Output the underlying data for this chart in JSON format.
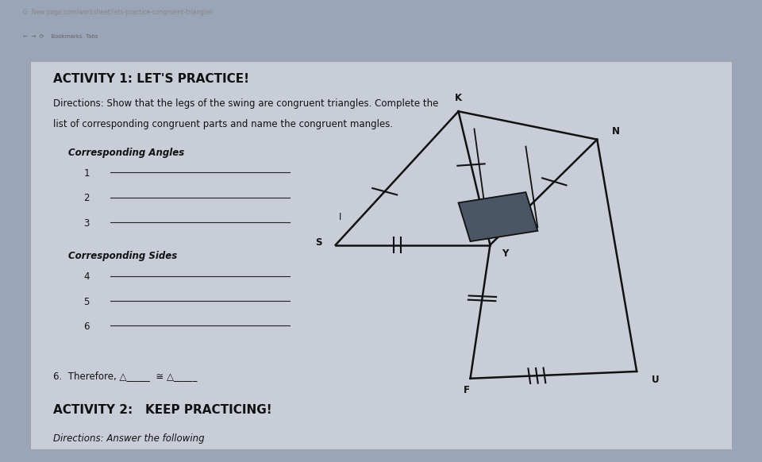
{
  "bg_browser": "#2a2a35",
  "bg_tab": "#3a3a4a",
  "bg_main": "#9aa5b8",
  "bg_content": "#b8bfcc",
  "title": "ACTIVITY 1: LET'S PRACTICE!",
  "directions_line1": "Directions: Show that the legs of the swing are congruent triangles. Complete the",
  "directions_line2": "list of corresponding congruent parts and name the congruent mangles.",
  "section1": "Corresponding Angles",
  "items1": [
    "1",
    "2",
    "3"
  ],
  "section2": "Corresponding Sides",
  "items2": [
    "4",
    "5",
    "6"
  ],
  "conclusion": "6.  Therefore, △_____  ≅ △_____",
  "title2": "ACTIVITY 2:   KEEP PRACTICING!",
  "directions2": "Directions: Answer the following",
  "line_color": "#111111",
  "seat_color": "#445566",
  "title_fontsize": 11,
  "body_fontsize": 8.5,
  "label_fontsize": 8
}
